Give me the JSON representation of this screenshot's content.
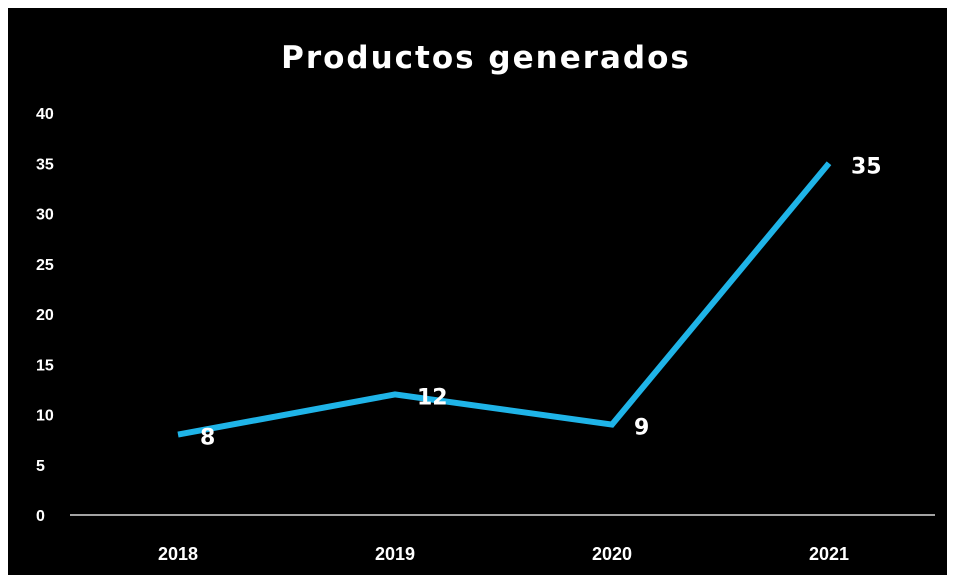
{
  "chart_data": {
    "type": "line",
    "title": "Productos generados",
    "xlabel": "",
    "ylabel": "",
    "categories": [
      "2018",
      "2019",
      "2020",
      "2021"
    ],
    "series": [
      {
        "values": [
          8,
          12,
          9,
          35
        ],
        "data_labels": [
          "8",
          "12",
          "9",
          "35"
        ]
      }
    ],
    "ylim": [
      0,
      40
    ],
    "yticks": [
      "0",
      "5",
      "10",
      "15",
      "20",
      "25",
      "30",
      "35",
      "40"
    ],
    "grid": false,
    "legend": "none"
  },
  "colors": {
    "background": "#000000",
    "line": "#1fb4e8",
    "text": "#ffffff",
    "axis": "#d9d9d9"
  }
}
